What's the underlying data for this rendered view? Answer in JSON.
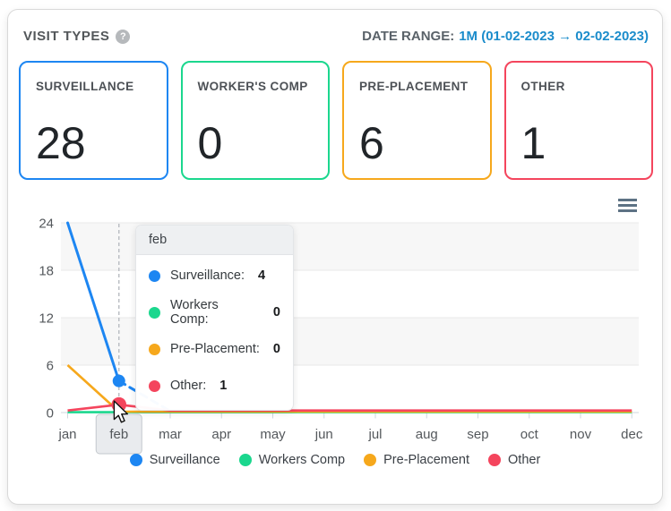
{
  "panel": {
    "title": "VISIT TYPES",
    "help_symbol": "?",
    "date_range_label": "DATE RANGE:",
    "date_range_value": "1M (01-02-2023 → 02-02-2023)"
  },
  "cards": [
    {
      "label": "SURVEILLANCE",
      "value": "28",
      "color": "#1d86f2"
    },
    {
      "label": "WORKER'S COMP",
      "value": "0",
      "color": "#1bd78e"
    },
    {
      "label": "PRE-PLACEMENT",
      "value": "6",
      "color": "#f6a81c"
    },
    {
      "label": "OTHER",
      "value": "1",
      "color": "#f4455d"
    }
  ],
  "chart_data": {
    "type": "line",
    "title": "",
    "xlabel": "",
    "ylabel": "",
    "categories": [
      "jan",
      "feb",
      "mar",
      "apr",
      "may",
      "jun",
      "jul",
      "aug",
      "sep",
      "oct",
      "nov",
      "dec"
    ],
    "series": [
      {
        "name": "Surveillance",
        "color": "#1d86f2",
        "values": [
          24,
          4,
          0,
          0,
          0,
          0,
          0,
          0,
          0,
          0,
          0,
          0
        ]
      },
      {
        "name": "Workers Comp",
        "color": "#1bd78e",
        "values": [
          0,
          0,
          0,
          0,
          0,
          0,
          0,
          0,
          0,
          0,
          0,
          0
        ]
      },
      {
        "name": "Pre-Placement",
        "color": "#f6a81c",
        "values": [
          6,
          0,
          0,
          0,
          0,
          0,
          0,
          0,
          0,
          0,
          0,
          0
        ]
      },
      {
        "name": "Other",
        "color": "#f4455d",
        "values": [
          0,
          1,
          0,
          0,
          0,
          0,
          0,
          0,
          0,
          0,
          0,
          0
        ]
      }
    ],
    "ylim": [
      0,
      24
    ],
    "yticks": [
      0,
      6,
      12,
      18,
      24
    ],
    "grid": true,
    "legend_position": "bottom",
    "hover": {
      "category": "feb",
      "category_index": 1
    }
  },
  "tooltip": {
    "title": "feb",
    "rows": [
      {
        "name": "Surveillance:",
        "value": "4",
        "color": "#1d86f2"
      },
      {
        "name": "Workers Comp:",
        "value": "0",
        "color": "#1bd78e"
      },
      {
        "name": "Pre-Placement:",
        "value": "0",
        "color": "#f6a81c"
      },
      {
        "name": "Other:",
        "value": "1",
        "color": "#f4455d"
      }
    ]
  },
  "legend": {
    "items": [
      {
        "label": "Surveillance",
        "color": "#1d86f2"
      },
      {
        "label": "Workers Comp",
        "color": "#1bd78e"
      },
      {
        "label": "Pre-Placement",
        "color": "#f6a81c"
      },
      {
        "label": "Other",
        "color": "#f4455d"
      }
    ]
  }
}
